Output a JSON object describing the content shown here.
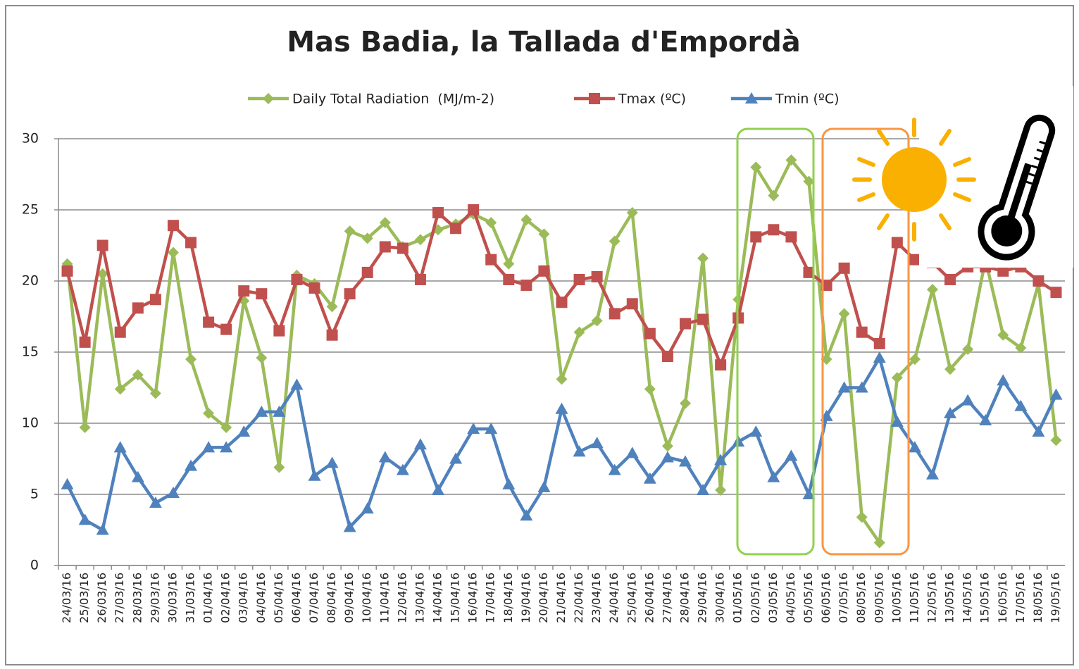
{
  "chart_data": {
    "type": "line",
    "title": "Mas Badia, la Tallada d'Empordà",
    "categories": [
      "24/03/16",
      "25/03/16",
      "26/03/16",
      "27/03/16",
      "28/03/16",
      "29/03/16",
      "30/03/16",
      "31/03/16",
      "01/04/16",
      "02/04/16",
      "03/04/16",
      "04/04/16",
      "05/04/16",
      "06/04/16",
      "07/04/16",
      "08/04/16",
      "09/04/16",
      "10/04/16",
      "11/04/16",
      "12/04/16",
      "13/04/16",
      "14/04/16",
      "15/04/16",
      "16/04/16",
      "17/04/16",
      "18/04/16",
      "19/04/16",
      "20/04/16",
      "21/04/16",
      "22/04/16",
      "23/04/16",
      "24/04/16",
      "25/04/16",
      "26/04/16",
      "27/04/16",
      "28/04/16",
      "29/04/16",
      "30/04/16",
      "01/05/16",
      "02/05/16",
      "03/05/16",
      "04/05/16",
      "05/05/16",
      "06/05/16",
      "07/05/16",
      "08/05/16",
      "09/05/16",
      "10/05/16",
      "11/05/16",
      "12/05/16",
      "13/05/16",
      "14/05/16",
      "15/05/16",
      "16/05/16",
      "17/05/16",
      "18/05/16",
      "19/05/16"
    ],
    "series": [
      {
        "name": "Daily Total Radiation  (MJ/m-2)",
        "color": "#9bbb59",
        "marker": "diamond",
        "values": [
          21.2,
          9.7,
          20.5,
          12.4,
          13.4,
          12.1,
          22,
          14.5,
          10.7,
          9.7,
          18.6,
          14.6,
          6.9,
          20.4,
          19.8,
          18.2,
          23.5,
          23,
          24.1,
          22.4,
          22.9,
          23.6,
          24,
          24.7,
          24.1,
          21.2,
          24.3,
          23.3,
          13.1,
          16.4,
          17.2,
          22.8,
          24.8,
          12.4,
          8.4,
          11.4,
          21.6,
          5.3,
          18.7,
          28,
          26,
          28.5,
          27,
          14.5,
          17.7,
          3.4,
          1.6,
          13.2,
          14.5,
          19.4,
          13.8,
          15.2,
          21.5,
          16.2,
          15.3,
          19.8,
          8.8
        ]
      },
      {
        "name": "Tmax (ºC)",
        "color": "#c0504d",
        "marker": "square",
        "values": [
          20.7,
          15.7,
          22.5,
          16.4,
          18.1,
          18.7,
          23.9,
          22.7,
          17.1,
          16.6,
          19.3,
          19.1,
          16.5,
          20.1,
          19.5,
          16.2,
          19.1,
          20.6,
          22.4,
          22.3,
          20.1,
          24.8,
          23.7,
          25,
          21.5,
          20.1,
          19.7,
          20.7,
          18.5,
          20.1,
          20.3,
          17.7,
          18.4,
          16.3,
          14.7,
          17,
          17.3,
          14.1,
          17.4,
          23.1,
          23.6,
          23.1,
          20.6,
          19.7,
          20.9,
          16.4,
          15.6,
          22.7,
          21.5,
          21.3,
          20.1,
          21,
          21,
          20.7,
          21,
          20,
          19.2
        ]
      },
      {
        "name": "Tmin (ºC)",
        "color": "#4f81bd",
        "marker": "triangle",
        "values": [
          5.7,
          3.2,
          2.5,
          8.3,
          6.2,
          4.4,
          5.1,
          7,
          8.3,
          8.3,
          9.4,
          10.8,
          10.8,
          12.7,
          6.3,
          7.2,
          2.7,
          4,
          7.6,
          6.7,
          8.5,
          5.3,
          7.5,
          9.6,
          9.6,
          5.7,
          3.5,
          5.5,
          11,
          8,
          8.6,
          6.7,
          7.9,
          6.1,
          7.6,
          7.3,
          5.3,
          7.4,
          8.7,
          9.4,
          6.2,
          7.7,
          5,
          10.5,
          12.5,
          12.5,
          14.6,
          10.1,
          8.3,
          6.4,
          10.7,
          11.6,
          10.2,
          13,
          11.2,
          9.4,
          12
        ]
      }
    ],
    "ylim": [
      0,
      30
    ],
    "yticks": [
      0,
      5,
      10,
      15,
      20,
      25,
      30
    ],
    "grid": true
  }
}
